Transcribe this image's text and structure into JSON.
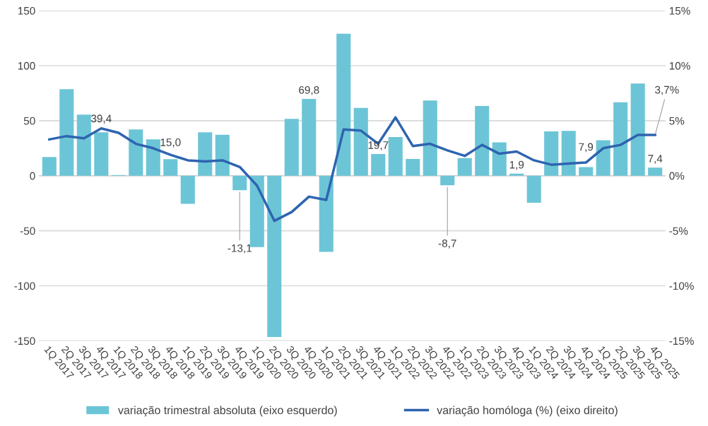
{
  "chart_data": {
    "type": "bar",
    "categories": [
      "1Q 2017",
      "2Q 2017",
      "3Q 2017",
      "4Q 2017",
      "1Q 2018",
      "2Q 2018",
      "3Q 2018",
      "4Q 2018",
      "1Q 2019",
      "2Q 2019",
      "3Q 2019",
      "4Q 2019",
      "1Q 2020",
      "2Q 2020",
      "3Q 2020",
      "4Q 2020",
      "1Q 2021",
      "2Q 2021",
      "3Q 2021",
      "4Q 2021",
      "1Q 2022",
      "2Q 2022",
      "3Q 2022",
      "4Q 2022",
      "1Q 2023",
      "2Q 2023",
      "3Q 2023",
      "4Q 2023",
      "1Q 2024",
      "2Q 2024",
      "3Q 2024",
      "4Q 2024",
      "1Q 2025",
      "2Q 2025",
      "3Q 2025",
      "4Q 2025"
    ],
    "series": [
      {
        "name": "variação trimestral absoluta (eixo esquerdo)",
        "color": "#6cc5d6",
        "values": [
          17,
          78.6,
          55.5,
          39.4,
          0.6,
          42,
          33.1,
          15.0,
          -25.6,
          39.4,
          37.3,
          -13.1,
          -64.8,
          -146.6,
          51.7,
          69.8,
          -69.1,
          129,
          61.6,
          19.7,
          35.2,
          15.2,
          68.4,
          -8.7,
          16.1,
          63.4,
          30.3,
          1.9,
          -24.6,
          40.2,
          40.7,
          7.9,
          32.2,
          66.7,
          83.7,
          7.4
        ],
        "value_labels": [
          null,
          null,
          null,
          "39,4",
          null,
          null,
          null,
          "15,0",
          null,
          null,
          null,
          "-13,1",
          null,
          null,
          null,
          "69,8",
          null,
          null,
          null,
          "19,7",
          null,
          null,
          null,
          "-8,7",
          null,
          null,
          null,
          "1,9",
          null,
          null,
          null,
          "7,9",
          null,
          null,
          null,
          "7,4"
        ]
      },
      {
        "name": "variação homóloga (%) (eixo direito)",
        "type": "line",
        "axis": "y2",
        "color": "#2e64b0",
        "values": [
          3.3,
          3.6,
          3.4,
          4.3,
          3.9,
          2.9,
          2.5,
          1.9,
          1.4,
          1.3,
          1.4,
          0.8,
          -0.9,
          -4.1,
          -3.3,
          -1.9,
          -2.2,
          4.2,
          4.1,
          2.9,
          5.3,
          2.7,
          2.9,
          2.3,
          1.8,
          2.8,
          2.0,
          2.2,
          1.4,
          1.0,
          1.1,
          1.2,
          2.5,
          2.8,
          3.7,
          3.7
        ],
        "value_labels": [
          null,
          null,
          null,
          null,
          null,
          null,
          null,
          null,
          null,
          null,
          null,
          null,
          null,
          null,
          null,
          null,
          null,
          null,
          null,
          null,
          null,
          null,
          null,
          null,
          null,
          null,
          null,
          null,
          null,
          null,
          null,
          null,
          null,
          null,
          null,
          "3,7%"
        ]
      }
    ],
    "ylim": [
      -150,
      150
    ],
    "yticks": [
      -150,
      -100,
      -50,
      0,
      50,
      100,
      150
    ],
    "y2lim": [
      -15,
      15
    ],
    "y2ticks": [
      {
        "value": -15,
        "label": "-15%"
      },
      {
        "value": -10,
        "label": "-10%"
      },
      {
        "value": -5,
        "label": "-5%"
      },
      {
        "value": 0,
        "label": "0%"
      },
      {
        "value": 5,
        "label": "5%"
      },
      {
        "value": 10,
        "label": "10%"
      },
      {
        "value": 15,
        "label": "15%"
      }
    ],
    "grid": "y",
    "legend": "bottom"
  }
}
